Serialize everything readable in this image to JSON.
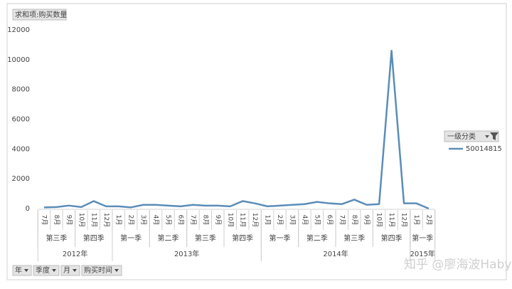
{
  "chart_data": {
    "type": "line",
    "value_field": "求和项:购买数量",
    "legend_title": "一级分类",
    "field_buttons": [
      "年",
      "季度",
      "月",
      "购买时间"
    ],
    "watermark": "知乎 @廖海波Haby",
    "categories": [
      "7月",
      "8月",
      "9月",
      "10月",
      "11月",
      "12月",
      "1月",
      "2月",
      "3月",
      "4月",
      "5月",
      "6月",
      "7月",
      "8月",
      "9月",
      "10月",
      "11月",
      "12月",
      "1月",
      "2月",
      "3月",
      "4月",
      "5月",
      "6月",
      "7月",
      "8月",
      "9月",
      "10月",
      "11月",
      "12月",
      "1月",
      "2月"
    ],
    "quarter_labels": [
      "第三季",
      null,
      null,
      "第四季",
      null,
      null,
      "第一季",
      null,
      null,
      "第二季",
      null,
      null,
      "第三季",
      null,
      null,
      "第四季",
      null,
      null,
      "第一季",
      null,
      null,
      "第二季",
      null,
      null,
      "第三季",
      null,
      null,
      "第四季",
      null,
      null,
      "第一季",
      null
    ],
    "year_labels": [
      "2012年",
      null,
      null,
      null,
      null,
      null,
      "2013年",
      null,
      null,
      null,
      null,
      null,
      null,
      null,
      null,
      null,
      null,
      null,
      "2014年",
      null,
      null,
      null,
      null,
      null,
      null,
      null,
      null,
      null,
      null,
      null,
      "2015年",
      null
    ],
    "series": [
      {
        "name": "50014815",
        "color": "#5b8db8",
        "values": [
          80,
          100,
          200,
          100,
          500,
          150,
          150,
          80,
          250,
          250,
          200,
          150,
          250,
          200,
          200,
          150,
          500,
          350,
          150,
          200,
          250,
          300,
          450,
          350,
          300,
          600,
          250,
          300,
          10600,
          350,
          350,
          0
        ]
      }
    ],
    "ylim": [
      0,
      12000
    ],
    "yticks": [
      0,
      2000,
      4000,
      6000,
      8000,
      10000,
      12000
    ],
    "grid": false
  }
}
